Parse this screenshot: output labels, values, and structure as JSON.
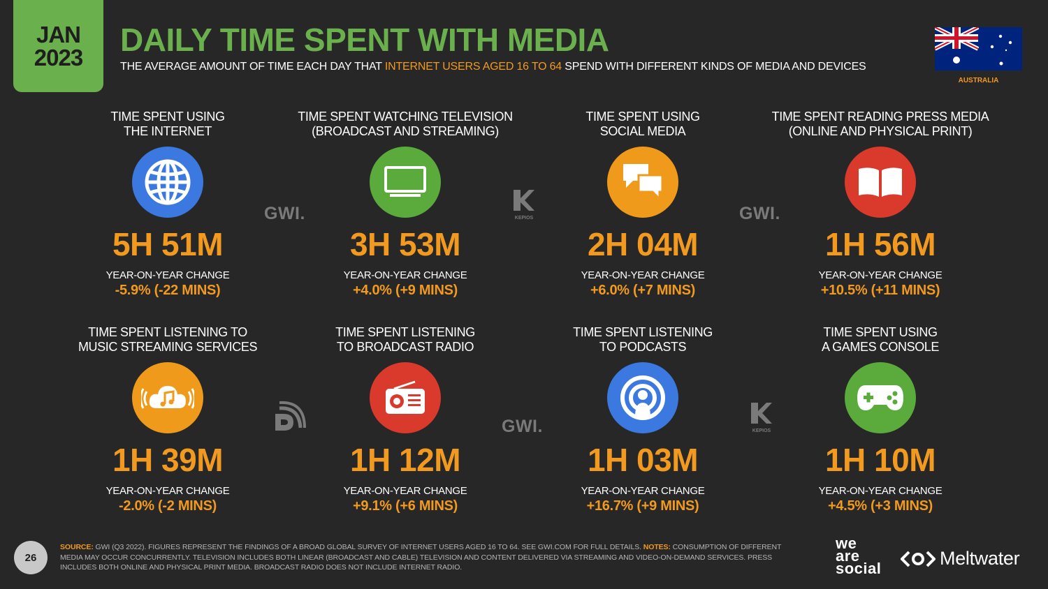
{
  "header": {
    "date_month": "JAN",
    "date_year": "2023",
    "title": "DAILY TIME SPENT WITH MEDIA",
    "subtitle_pre": "THE AVERAGE AMOUNT OF TIME EACH DAY THAT ",
    "subtitle_highlight": "INTERNET USERS AGED 16 TO 64",
    "subtitle_post": " SPEND WITH DIFFERENT KINDS OF MEDIA AND DEVICES",
    "country": "AUSTRALIA"
  },
  "stats": [
    {
      "label_1": "TIME SPENT USING",
      "label_2": "THE INTERNET",
      "icon": "globe-icon",
      "value": "5H 51M",
      "yoy_label": "YEAR-ON-YEAR CHANGE",
      "yoy": "-5.9% (-22 MINS)",
      "color": "#3b79e0"
    },
    {
      "label_1": "TIME SPENT WATCHING TELEVISION",
      "label_2": "(BROADCAST AND STREAMING)",
      "icon": "television-icon",
      "value": "3H 53M",
      "yoy_label": "YEAR-ON-YEAR CHANGE",
      "yoy": "+4.0% (+9 MINS)",
      "color": "#5aaa3c"
    },
    {
      "label_1": "TIME SPENT USING",
      "label_2": "SOCIAL MEDIA",
      "icon": "chat-bubbles-icon",
      "value": "2H 04M",
      "yoy_label": "YEAR-ON-YEAR CHANGE",
      "yoy": "+6.0% (+7 MINS)",
      "color": "#ef9a1b"
    },
    {
      "label_1": "TIME SPENT READING PRESS MEDIA",
      "label_2": "(ONLINE AND PHYSICAL PRINT)",
      "icon": "open-book-icon",
      "value": "1H 56M",
      "yoy_label": "YEAR-ON-YEAR CHANGE",
      "yoy": "+10.5% (+11 MINS)",
      "color": "#d93a2c"
    },
    {
      "label_1": "TIME SPENT LISTENING TO",
      "label_2": "MUSIC STREAMING SERVICES",
      "icon": "music-cloud-icon",
      "value": "1H 39M",
      "yoy_label": "YEAR-ON-YEAR CHANGE",
      "yoy": "-2.0% (-2 MINS)",
      "color": "#ef9a1b"
    },
    {
      "label_1": "TIME SPENT LISTENING",
      "label_2": "TO BROADCAST RADIO",
      "icon": "radio-icon",
      "value": "1H 12M",
      "yoy_label": "YEAR-ON-YEAR CHANGE",
      "yoy": "+9.1% (+6 MINS)",
      "color": "#d93a2c"
    },
    {
      "label_1": "TIME SPENT LISTENING",
      "label_2": "TO PODCASTS",
      "icon": "podcast-icon",
      "value": "1H 03M",
      "yoy_label": "YEAR-ON-YEAR CHANGE",
      "yoy": "+16.7% (+9 MINS)",
      "color": "#3b79e0"
    },
    {
      "label_1": "TIME SPENT USING",
      "label_2": "A GAMES CONSOLE",
      "icon": "gamepad-icon",
      "value": "1H 10M",
      "yoy_label": "YEAR-ON-YEAR CHANGE",
      "yoy": "+4.5% (+3 MINS)",
      "color": "#5aaa3c"
    }
  ],
  "watermarks": {
    "gwi": "GWI.",
    "kepios": "KEPIOS"
  },
  "footer": {
    "page_number": "26",
    "source_key": "SOURCE:",
    "source_text": " GWI (Q3 2022). FIGURES REPRESENT THE FINDINGS OF A BROAD GLOBAL SURVEY OF INTERNET USERS AGED 16 TO 64. SEE GWI.COM FOR FULL DETAILS. ",
    "notes_key": "NOTES:",
    "notes_text": " CONSUMPTION OF DIFFERENT MEDIA MAY OCCUR CONCURRENTLY. TELEVISION INCLUDES BOTH LINEAR (BROADCAST AND CABLE) TELEVISION AND CONTENT DELIVERED VIA STREAMING AND VIDEO-ON-DEMAND SERVICES. PRESS INCLUDES BOTH ONLINE AND PHYSICAL PRINT MEDIA. BROADCAST RADIO DOES NOT INCLUDE INTERNET RADIO.",
    "logo_was_1": "we",
    "logo_was_2": "are",
    "logo_was_3": "social",
    "logo_meltwater": "Meltwater"
  }
}
